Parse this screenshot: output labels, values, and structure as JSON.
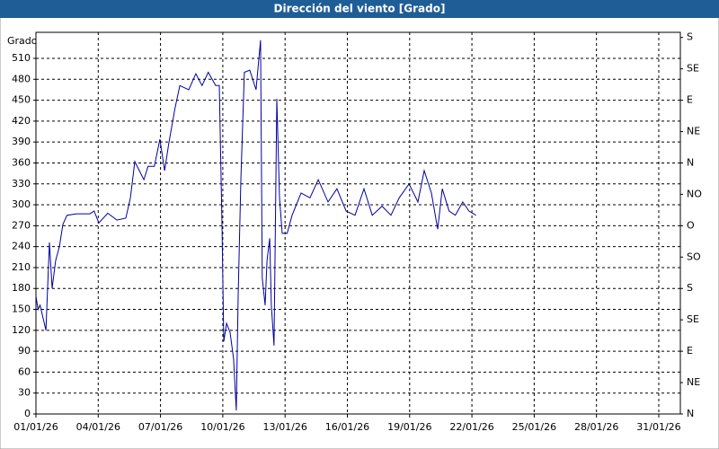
{
  "chart_data": {
    "type": "line",
    "title": "Dirección del viento [Grado]",
    "y_label": "Grado",
    "color": "#0000a0",
    "grid": true,
    "x": [
      0,
      0.1,
      0.2,
      0.48,
      0.65,
      0.78,
      0.95,
      1.13,
      1.3,
      1.5,
      1.95,
      2.6,
      2.8,
      3.03,
      3.46,
      3.9,
      4.33,
      4.55,
      4.76,
      4.98,
      5.2,
      5.4,
      5.7,
      5.97,
      6.2,
      6.4,
      6.7,
      6.93,
      7.36,
      7.7,
      8.0,
      8.3,
      8.66,
      8.83,
      8.96,
      9.05,
      9.18,
      9.35,
      9.52,
      9.65,
      9.74,
      9.87,
      10.04,
      10.3,
      10.6,
      10.82,
      10.9,
      11.04,
      11.13,
      11.26,
      11.34,
      11.47,
      11.6,
      11.73,
      11.86,
      12.1,
      12.34,
      12.77,
      13.2,
      13.6,
      14.07,
      14.5,
      14.94,
      15.37,
      15.8,
      16.2,
      16.67,
      17.1,
      17.5,
      17.97,
      18.4,
      18.7,
      19.05,
      19.35,
      19.57,
      19.9,
      20.2,
      20.56,
      20.86,
      21.2
    ],
    "values": [
      169,
      150,
      156,
      120,
      246,
      180,
      220,
      240,
      272,
      285,
      287,
      287,
      291,
      274,
      288,
      278,
      281,
      310,
      362,
      349,
      336,
      355,
      355,
      394,
      349,
      388,
      439,
      471,
      465,
      488,
      471,
      490,
      471,
      471,
      272,
      104,
      130,
      117,
      79,
      5,
      169,
      336,
      490,
      493,
      465,
      536,
      195,
      156,
      220,
      252,
      156,
      98,
      452,
      310,
      259,
      259,
      285,
      317,
      310,
      336,
      304,
      323,
      291,
      285,
      323,
      285,
      298,
      285,
      310,
      330,
      304,
      349,
      317,
      265,
      323,
      291,
      285,
      304,
      291,
      285
    ],
    "xlim": [
      0,
      31.04
    ],
    "xticks": [
      {
        "value": 0,
        "label": "01/01/26"
      },
      {
        "value": 3,
        "label": "04/01/26"
      },
      {
        "value": 6,
        "label": "07/01/26"
      },
      {
        "value": 9,
        "label": "10/01/26"
      },
      {
        "value": 12,
        "label": "13/01/26"
      },
      {
        "value": 15,
        "label": "16/01/26"
      },
      {
        "value": 18,
        "label": "19/01/26"
      },
      {
        "value": 21,
        "label": "22/01/26"
      },
      {
        "value": 24,
        "label": "25/01/26"
      },
      {
        "value": 27,
        "label": "28/01/26"
      },
      {
        "value": 30,
        "label": "31/01/26"
      }
    ],
    "ylim": [
      0,
      540
    ],
    "yticks": [
      0,
      30,
      60,
      90,
      120,
      150,
      180,
      210,
      240,
      270,
      300,
      330,
      360,
      390,
      420,
      450,
      480,
      510
    ],
    "y2lim": [
      0,
      540
    ],
    "y2ticks": [
      {
        "value": 0,
        "label": "N"
      },
      {
        "value": 45,
        "label": "NE"
      },
      {
        "value": 90,
        "label": "E"
      },
      {
        "value": 135,
        "label": "SE"
      },
      {
        "value": 180,
        "label": "S"
      },
      {
        "value": 225,
        "label": "SO"
      },
      {
        "value": 270,
        "label": "O"
      },
      {
        "value": 315,
        "label": "NO"
      },
      {
        "value": 360,
        "label": "N"
      },
      {
        "value": 405,
        "label": "NE"
      },
      {
        "value": 450,
        "label": "E"
      },
      {
        "value": 495,
        "label": "SE"
      },
      {
        "value": 540,
        "label": "S"
      }
    ]
  }
}
